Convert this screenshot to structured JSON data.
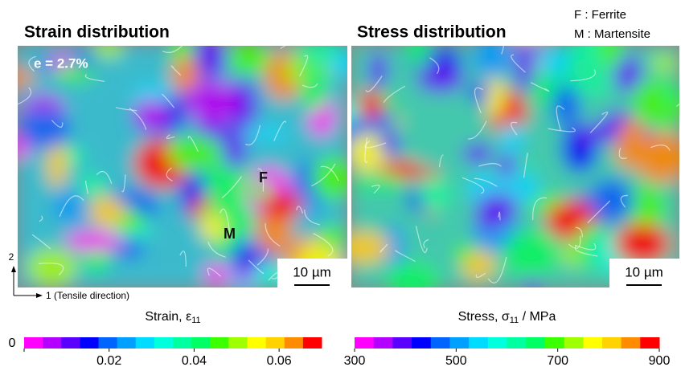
{
  "panels": [
    {
      "title": "Strain distribution",
      "annotation": "e = 2.7%",
      "markers": [
        "F",
        "M"
      ],
      "scale_bar": "10 µm"
    },
    {
      "title": "Stress distribution",
      "scale_bar": "10 µm"
    }
  ],
  "legend": [
    "F : Ferrite",
    "M : Martensite"
  ],
  "axes": {
    "y": "2",
    "x": "1 (Tensile direction)"
  },
  "colors": [
    "#ff00ff",
    "#b400ff",
    "#5a00ff",
    "#0000ff",
    "#0064ff",
    "#00a0ff",
    "#00dcff",
    "#00ffdc",
    "#00ffa0",
    "#00ff64",
    "#3cff00",
    "#a0ff00",
    "#ffff00",
    "#ffd200",
    "#ff8c00",
    "#ff0000"
  ],
  "colorbars": [
    {
      "label": [
        "Strain, ε",
        "11",
        ""
      ],
      "range": [
        0,
        0.07
      ],
      "ticks": [
        0,
        0.02,
        0.04,
        0.06
      ]
    },
    {
      "label": [
        "Stress, σ",
        "11",
        " / MPa"
      ],
      "range": [
        300,
        900
      ],
      "ticks": [
        300,
        500,
        700,
        900
      ]
    }
  ]
}
